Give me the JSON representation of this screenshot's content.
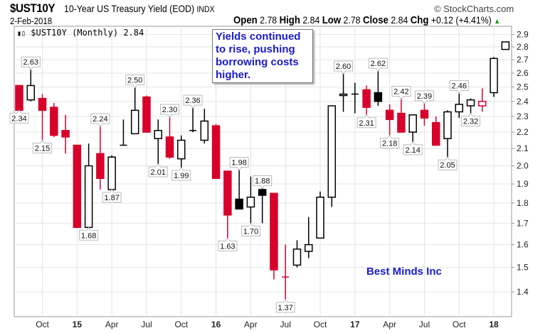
{
  "header": {
    "symbol": "$UST10Y",
    "description": "10-Year US Treasury Yield (EOD)",
    "exchange": "INDX",
    "date": "2-Feb-2018",
    "open_label": "Open",
    "open": "2.78",
    "high_label": "High",
    "high": "2.84",
    "low_label": "Low",
    "low": "2.78",
    "close_label": "Close",
    "close": "2.84",
    "chg_label": "Chg",
    "chg": "+0.12 (+4.41%)",
    "brand": "© StockCharts.com",
    "up_arrow_color": "#009900"
  },
  "legend": {
    "icon": "candlestick-icon",
    "text": "$UST10Y (Monthly) 2.84"
  },
  "annotation": "Yields continued to rise, pushing borrowing costs higher.",
  "watermark": "Best Minds Inc",
  "colors": {
    "up": "#000000",
    "down": "#d6002a",
    "annotation": "#1a1acc",
    "grid": "#e4e4e4"
  },
  "chart_data": {
    "type": "candlestick",
    "title": "$UST10Y (Monthly)",
    "y_scale": "log",
    "ylim": [
      1.32,
      2.92
    ],
    "yticks": [
      "1.4",
      "1.5",
      "1.6",
      "1.7",
      "1.8",
      "1.9",
      "2.0",
      "2.1",
      "2.2",
      "2.3",
      "2.4",
      "2.5",
      "2.6",
      "2.7",
      "2.8",
      "2.9"
    ],
    "xticks": [
      {
        "date": "2014-10",
        "label": "Oct",
        "bold": false
      },
      {
        "date": "2015-01",
        "label": "15",
        "bold": true
      },
      {
        "date": "2015-04",
        "label": "Apr",
        "bold": false
      },
      {
        "date": "2015-07",
        "label": "Jul",
        "bold": false
      },
      {
        "date": "2015-10",
        "label": "Oct",
        "bold": false
      },
      {
        "date": "2016-01",
        "label": "16",
        "bold": true
      },
      {
        "date": "2016-04",
        "label": "Apr",
        "bold": false
      },
      {
        "date": "2016-07",
        "label": "Jul",
        "bold": false
      },
      {
        "date": "2016-10",
        "label": "Oct",
        "bold": false
      },
      {
        "date": "2017-01",
        "label": "17",
        "bold": true
      },
      {
        "date": "2017-04",
        "label": "Apr",
        "bold": false
      },
      {
        "date": "2017-07",
        "label": "Jul",
        "bold": false
      },
      {
        "date": "2017-10",
        "label": "Oct",
        "bold": false
      },
      {
        "date": "2018-01",
        "label": "18",
        "bold": true
      }
    ],
    "grid": true,
    "candles": [
      {
        "date": "2014-08",
        "o": 2.51,
        "h": 2.51,
        "l": 2.34,
        "c": 2.34,
        "label": "2.34",
        "label_pos": "low"
      },
      {
        "date": "2014-09",
        "o": 2.41,
        "h": 2.63,
        "l": 2.4,
        "c": 2.51,
        "label": "2.63",
        "label_pos": "high"
      },
      {
        "date": "2014-10",
        "o": 2.42,
        "h": 2.45,
        "l": 2.15,
        "c": 2.34,
        "label": "2.15",
        "label_pos": "low"
      },
      {
        "date": "2014-11",
        "o": 2.36,
        "h": 2.39,
        "l": 2.17,
        "c": 2.18
      },
      {
        "date": "2014-12",
        "o": 2.21,
        "h": 2.31,
        "l": 2.07,
        "c": 2.17
      },
      {
        "date": "2015-01",
        "o": 2.12,
        "h": 2.12,
        "l": 1.68,
        "c": 1.68
      },
      {
        "date": "2015-02",
        "o": 1.68,
        "h": 2.13,
        "l": 1.68,
        "c": 2.0,
        "label": "1.68",
        "label_pos": "low"
      },
      {
        "date": "2015-03",
        "o": 2.07,
        "h": 2.24,
        "l": 1.87,
        "c": 1.93,
        "label": "2.24",
        "label_pos": "high"
      },
      {
        "date": "2015-04",
        "o": 1.87,
        "h": 2.06,
        "l": 1.87,
        "c": 2.05,
        "label": "1.87",
        "label_pos": "low"
      },
      {
        "date": "2015-05",
        "o": 2.12,
        "h": 2.28,
        "l": 2.12,
        "c": 2.12
      },
      {
        "date": "2015-06",
        "o": 2.19,
        "h": 2.5,
        "l": 2.19,
        "c": 2.34,
        "label": "2.50",
        "label_pos": "high"
      },
      {
        "date": "2015-07",
        "o": 2.43,
        "h": 2.44,
        "l": 2.2,
        "c": 2.2
      },
      {
        "date": "2015-08",
        "o": 2.16,
        "h": 2.28,
        "l": 2.01,
        "c": 2.21,
        "label": "2.01",
        "label_pos": "low"
      },
      {
        "date": "2015-09",
        "o": 2.17,
        "h": 2.3,
        "l": 2.04,
        "c": 2.05,
        "label": "2.30",
        "label_pos": "high"
      },
      {
        "date": "2015-10",
        "o": 2.04,
        "h": 2.18,
        "l": 1.99,
        "c": 2.15,
        "label": "1.99",
        "label_pos": "low"
      },
      {
        "date": "2015-11",
        "o": 2.21,
        "h": 2.36,
        "l": 2.2,
        "c": 2.21,
        "label": "2.36",
        "label_pos": "high"
      },
      {
        "date": "2015-12",
        "o": 2.15,
        "h": 2.35,
        "l": 2.13,
        "c": 2.27
      },
      {
        "date": "2016-01",
        "o": 2.24,
        "h": 2.25,
        "l": 1.93,
        "c": 1.93
      },
      {
        "date": "2016-02",
        "o": 1.97,
        "h": 1.97,
        "l": 1.63,
        "c": 1.74,
        "label": "1.63",
        "label_pos": "low"
      },
      {
        "date": "2016-03",
        "o": 1.82,
        "h": 1.98,
        "l": 1.77,
        "c": 1.77,
        "label": "1.98",
        "label_pos": "high"
      },
      {
        "date": "2016-04",
        "o": 1.78,
        "h": 1.94,
        "l": 1.7,
        "c": 1.83,
        "label": "1.70",
        "label_pos": "low"
      },
      {
        "date": "2016-05",
        "o": 1.87,
        "h": 1.88,
        "l": 1.7,
        "c": 1.84,
        "label": "1.88",
        "label_pos": "high"
      },
      {
        "date": "2016-06",
        "o": 1.85,
        "h": 1.85,
        "l": 1.45,
        "c": 1.49
      },
      {
        "date": "2016-07",
        "o": 1.46,
        "h": 1.6,
        "l": 1.37,
        "c": 1.46,
        "label": "1.37",
        "label_pos": "low"
      },
      {
        "date": "2016-08",
        "o": 1.51,
        "h": 1.62,
        "l": 1.5,
        "c": 1.58
      },
      {
        "date": "2016-09",
        "o": 1.57,
        "h": 1.73,
        "l": 1.54,
        "c": 1.6
      },
      {
        "date": "2016-10",
        "o": 1.63,
        "h": 1.86,
        "l": 1.63,
        "c": 1.83
      },
      {
        "date": "2016-11",
        "o": 1.83,
        "h": 2.37,
        "l": 1.78,
        "c": 2.37
      },
      {
        "date": "2016-12",
        "o": 2.44,
        "h": 2.6,
        "l": 2.33,
        "c": 2.45,
        "label": "2.60",
        "label_pos": "high"
      },
      {
        "date": "2017-01",
        "o": 2.45,
        "h": 2.53,
        "l": 2.32,
        "c": 2.45
      },
      {
        "date": "2017-02",
        "o": 2.48,
        "h": 2.51,
        "l": 2.31,
        "c": 2.36,
        "label": "2.31",
        "label_pos": "low"
      },
      {
        "date": "2017-03",
        "o": 2.46,
        "h": 2.62,
        "l": 2.37,
        "c": 2.4,
        "label": "2.62",
        "label_pos": "high"
      },
      {
        "date": "2017-04",
        "o": 2.34,
        "h": 2.38,
        "l": 2.18,
        "c": 2.28,
        "label": "2.18",
        "label_pos": "low"
      },
      {
        "date": "2017-05",
        "o": 2.32,
        "h": 2.42,
        "l": 2.2,
        "c": 2.2,
        "label": "2.42",
        "label_pos": "high"
      },
      {
        "date": "2017-06",
        "o": 2.2,
        "h": 2.31,
        "l": 2.14,
        "c": 2.31,
        "label": "2.14",
        "label_pos": "low"
      },
      {
        "date": "2017-07",
        "o": 2.34,
        "h": 2.39,
        "l": 2.24,
        "c": 2.29,
        "label": "2.39",
        "label_pos": "high"
      },
      {
        "date": "2017-08",
        "o": 2.26,
        "h": 2.3,
        "l": 2.12,
        "c": 2.12
      },
      {
        "date": "2017-09",
        "o": 2.16,
        "h": 2.34,
        "l": 2.05,
        "c": 2.33,
        "label": "2.05",
        "label_pos": "low"
      },
      {
        "date": "2017-10",
        "o": 2.33,
        "h": 2.46,
        "l": 2.29,
        "c": 2.38,
        "label": "2.46",
        "label_pos": "high"
      },
      {
        "date": "2017-11",
        "o": 2.37,
        "h": 2.42,
        "l": 2.32,
        "c": 2.41,
        "label": "2.32",
        "label_pos": "low"
      },
      {
        "date": "2017-12",
        "o": 2.37,
        "h": 2.49,
        "l": 2.33,
        "c": 2.4
      },
      {
        "date": "2018-01",
        "o": 2.46,
        "h": 2.72,
        "l": 2.43,
        "c": 2.71
      },
      {
        "date": "2018-02",
        "o": 2.78,
        "h": 2.84,
        "l": 2.78,
        "c": 2.84
      }
    ]
  }
}
